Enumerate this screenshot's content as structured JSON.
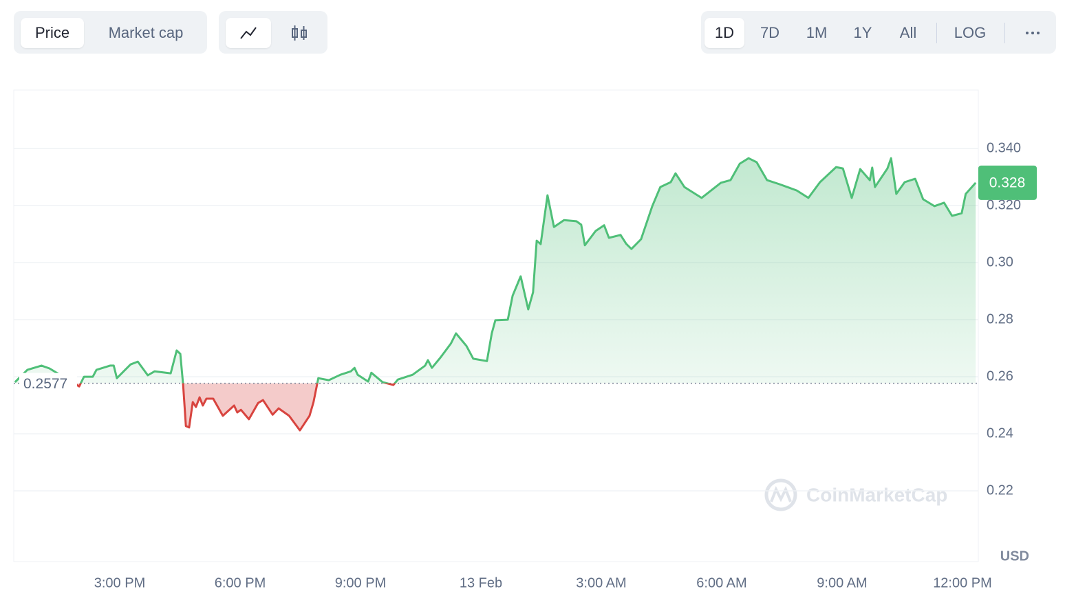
{
  "toolbar": {
    "metric_tabs": [
      "Price",
      "Market cap"
    ],
    "ranges": [
      "1D",
      "7D",
      "1M",
      "1Y",
      "All"
    ],
    "scale": "LOG"
  },
  "chart_data": {
    "type": "line",
    "x": [
      12.39,
      12.7,
      13.05,
      13.25,
      13.99,
      14.11,
      14.33,
      14.42,
      14.76,
      14.85,
      14.93,
      15.1,
      15.27,
      15.45,
      15.7,
      15.87,
      16.27,
      16.42,
      16.51,
      16.58,
      16.65,
      16.73,
      16.82,
      16.9,
      16.99,
      17.07,
      17.16,
      17.33,
      17.57,
      17.85,
      17.93,
      18.02,
      18.22,
      18.45,
      18.57,
      18.81,
      18.96,
      19.22,
      19.49,
      19.73,
      19.83,
      19.95,
      20.21,
      20.5,
      20.76,
      20.85,
      20.93,
      21.19,
      21.27,
      21.55,
      21.82,
      21.93,
      22.3,
      22.61,
      22.68,
      22.78,
      22.99,
      23.25,
      23.38,
      23.64,
      23.81,
      24.15,
      24.27,
      24.36,
      24.67,
      24.79,
      24.99,
      25.18,
      25.3,
      25.39,
      25.49,
      25.66,
      25.82,
      26.07,
      26.38,
      26.5,
      26.59,
      26.86,
      27.07,
      27.19,
      27.48,
      27.62,
      27.75,
      27.99,
      28.27,
      28.47,
      28.73,
      28.85,
      29.07,
      29.5,
      29.98,
      30.22,
      30.45,
      30.67,
      30.87,
      31.13,
      31.44,
      31.87,
      32.16,
      32.45,
      32.85,
      33.02,
      33.24,
      33.45,
      33.69,
      33.75,
      33.82,
      34.13,
      34.22,
      34.35,
      34.56,
      34.82,
      35.02,
      35.3,
      35.54,
      35.74,
      35.98,
      36.08,
      36.33
    ],
    "values": [
      0.2581,
      0.2624,
      0.2639,
      0.2629,
      0.2566,
      0.26,
      0.26,
      0.2624,
      0.2639,
      0.2639,
      0.2595,
      0.2619,
      0.2643,
      0.2653,
      0.2605,
      0.2619,
      0.2612,
      0.2692,
      0.268,
      0.2571,
      0.2427,
      0.2422,
      0.2511,
      0.2494,
      0.2528,
      0.2499,
      0.2523,
      0.2523,
      0.2463,
      0.2499,
      0.2475,
      0.2484,
      0.2451,
      0.2508,
      0.2518,
      0.2467,
      0.2489,
      0.2463,
      0.2412,
      0.2463,
      0.2511,
      0.2595,
      0.2588,
      0.2607,
      0.2619,
      0.2631,
      0.2607,
      0.2583,
      0.2614,
      0.2581,
      0.2571,
      0.259,
      0.2607,
      0.2639,
      0.2658,
      0.2631,
      0.2667,
      0.2716,
      0.2752,
      0.2708,
      0.2663,
      0.2655,
      0.2752,
      0.2798,
      0.28,
      0.2884,
      0.2952,
      0.2836,
      0.2896,
      0.3077,
      0.3065,
      0.3236,
      0.3125,
      0.3149,
      0.3145,
      0.3133,
      0.3061,
      0.3111,
      0.3131,
      0.3087,
      0.3097,
      0.3066,
      0.3048,
      0.3082,
      0.3198,
      0.3265,
      0.3282,
      0.3313,
      0.3265,
      0.3227,
      0.328,
      0.3289,
      0.3347,
      0.3366,
      0.3352,
      0.3289,
      0.3275,
      0.3253,
      0.3227,
      0.3282,
      0.3335,
      0.333,
      0.3227,
      0.3328,
      0.3289,
      0.3333,
      0.3265,
      0.333,
      0.3366,
      0.3241,
      0.3282,
      0.3294,
      0.3222,
      0.3198,
      0.321,
      0.3164,
      0.3173,
      0.3241,
      0.328
    ],
    "baseline": 0.2577,
    "current_price": 0.328,
    "up_color": "#4fbf78",
    "down_color": "#d8443f",
    "xlim": [
      12.36,
      36.36
    ],
    "xticks": [
      {
        "value": 15,
        "label": "3:00 PM"
      },
      {
        "value": 18,
        "label": "6:00 PM"
      },
      {
        "value": 21,
        "label": "9:00 PM"
      },
      {
        "value": 24,
        "label": "13 Feb"
      },
      {
        "value": 27,
        "label": "3:00 AM"
      },
      {
        "value": 30,
        "label": "6:00 AM"
      },
      {
        "value": 33,
        "label": "9:00 AM"
      },
      {
        "value": 36,
        "label": "12:00 PM"
      }
    ],
    "ylim": [
      0.1952,
      0.3605
    ],
    "yticks": [
      {
        "value": 0.34,
        "label": "0.340"
      },
      {
        "value": 0.32,
        "label": "0.320"
      },
      {
        "value": 0.3,
        "label": "0.30"
      },
      0.28,
      0.26,
      0.24,
      0.22
    ],
    "grid": true,
    "unit_label": "USD",
    "watermark": "CoinMarketCap"
  }
}
